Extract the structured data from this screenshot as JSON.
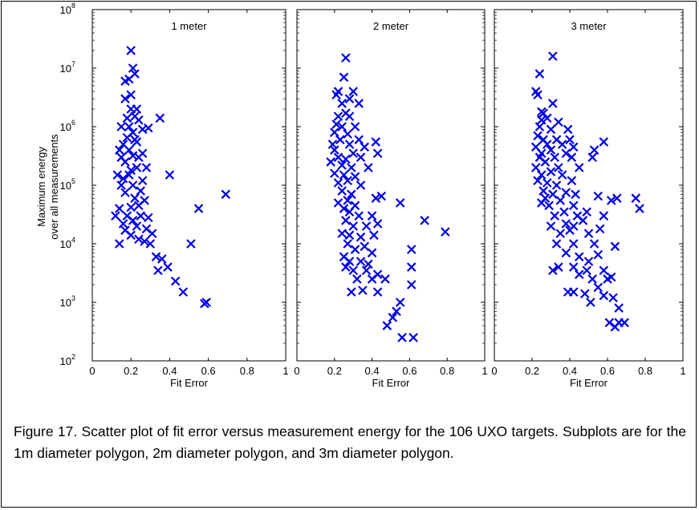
{
  "figure": {
    "caption": "Figure 17.  Scatter plot of fit error versus measurement energy for the 106 UXO targets.  Subplots are for the 1m diameter polygon, 2m diameter polygon, and 3m diameter polygon.",
    "marker_color": "#0000E6"
  },
  "chart_data": [
    {
      "type": "scatter",
      "title": "1 meter",
      "xlabel": "Fit Error",
      "ylabel": "Maximum energy over all measurements",
      "ylabel_lines": [
        "Maximum energy",
        "over all measurements"
      ],
      "xlim": [
        0,
        1
      ],
      "ylim": [
        100,
        100000000
      ],
      "yscale": "log",
      "xticks": [
        "0",
        "0.2",
        "0.4",
        "0.6",
        "0.8",
        "1"
      ],
      "yticks": [
        {
          "base": "10",
          "exp": "2"
        },
        {
          "base": "10",
          "exp": "3"
        },
        {
          "base": "10",
          "exp": "4"
        },
        {
          "base": "10",
          "exp": "5"
        },
        {
          "base": "10",
          "exp": "6"
        },
        {
          "base": "10",
          "exp": "7"
        },
        {
          "base": "10",
          "exp": "8"
        }
      ],
      "marker": "x",
      "points": [
        [
          0.2,
          20000000
        ],
        [
          0.21,
          10000000
        ],
        [
          0.22,
          8000000
        ],
        [
          0.17,
          6000000
        ],
        [
          0.19,
          6500000
        ],
        [
          0.2,
          3500000
        ],
        [
          0.17,
          3000000
        ],
        [
          0.2,
          2000000
        ],
        [
          0.23,
          2000000
        ],
        [
          0.18,
          1400000
        ],
        [
          0.22,
          1500000
        ],
        [
          0.24,
          1300000
        ],
        [
          0.35,
          1400000
        ],
        [
          0.15,
          1000000
        ],
        [
          0.19,
          1000000
        ],
        [
          0.21,
          800000
        ],
        [
          0.26,
          900000
        ],
        [
          0.29,
          950000
        ],
        [
          0.18,
          650000
        ],
        [
          0.22,
          600000
        ],
        [
          0.16,
          500000
        ],
        [
          0.23,
          550000
        ],
        [
          0.14,
          400000
        ],
        [
          0.19,
          400000
        ],
        [
          0.26,
          350000
        ],
        [
          0.15,
          300000
        ],
        [
          0.21,
          320000
        ],
        [
          0.24,
          300000
        ],
        [
          0.17,
          250000
        ],
        [
          0.23,
          200000
        ],
        [
          0.2,
          180000
        ],
        [
          0.28,
          200000
        ],
        [
          0.13,
          150000
        ],
        [
          0.16,
          130000
        ],
        [
          0.19,
          150000
        ],
        [
          0.26,
          120000
        ],
        [
          0.4,
          150000
        ],
        [
          0.15,
          100000
        ],
        [
          0.21,
          100000
        ],
        [
          0.25,
          80000
        ],
        [
          0.17,
          75000
        ],
        [
          0.22,
          60000
        ],
        [
          0.27,
          55000
        ],
        [
          0.24,
          45000
        ],
        [
          0.14,
          40000
        ],
        [
          0.2,
          42000
        ],
        [
          0.12,
          30000
        ],
        [
          0.18,
          30000
        ],
        [
          0.25,
          30000
        ],
        [
          0.29,
          28000
        ],
        [
          0.16,
          22000
        ],
        [
          0.21,
          25000
        ],
        [
          0.23,
          20000
        ],
        [
          0.28,
          18000
        ],
        [
          0.31,
          15000
        ],
        [
          0.17,
          17000
        ],
        [
          0.2,
          14000
        ],
        [
          0.24,
          12000
        ],
        [
          0.27,
          11000
        ],
        [
          0.14,
          10000
        ],
        [
          0.3,
          10000
        ],
        [
          0.33,
          6000
        ],
        [
          0.36,
          5500
        ],
        [
          0.34,
          3500
        ],
        [
          0.39,
          4000
        ],
        [
          0.43,
          2300
        ],
        [
          0.47,
          1500
        ],
        [
          0.55,
          40000
        ],
        [
          0.51,
          10000
        ],
        [
          0.59,
          1000
        ],
        [
          0.58,
          950
        ],
        [
          0.69,
          70000
        ]
      ]
    },
    {
      "type": "scatter",
      "title": "2 meter",
      "xlabel": "Fit Error",
      "xlim": [
        0,
        1
      ],
      "ylim": [
        100,
        100000000
      ],
      "yscale": "log",
      "xticks": [
        "0",
        "0.2",
        "0.4",
        "0.6",
        "0.8",
        "1"
      ],
      "marker": "x",
      "points": [
        [
          0.26,
          15000000
        ],
        [
          0.25,
          7000000
        ],
        [
          0.22,
          4000000
        ],
        [
          0.21,
          3500000
        ],
        [
          0.28,
          3000000
        ],
        [
          0.3,
          4000000
        ],
        [
          0.24,
          2500000
        ],
        [
          0.26,
          1700000
        ],
        [
          0.33,
          2500000
        ],
        [
          0.22,
          1500000
        ],
        [
          0.28,
          1500000
        ],
        [
          0.21,
          1100000
        ],
        [
          0.24,
          1000000
        ],
        [
          0.31,
          1000000
        ],
        [
          0.2,
          800000
        ],
        [
          0.27,
          750000
        ],
        [
          0.33,
          600000
        ],
        [
          0.42,
          550000
        ],
        [
          0.19,
          500000
        ],
        [
          0.23,
          600000
        ],
        [
          0.28,
          500000
        ],
        [
          0.36,
          450000
        ],
        [
          0.43,
          350000
        ],
        [
          0.2,
          400000
        ],
        [
          0.3,
          350000
        ],
        [
          0.22,
          300000
        ],
        [
          0.26,
          280000
        ],
        [
          0.34,
          300000
        ],
        [
          0.18,
          250000
        ],
        [
          0.24,
          220000
        ],
        [
          0.29,
          200000
        ],
        [
          0.38,
          200000
        ],
        [
          0.2,
          160000
        ],
        [
          0.25,
          150000
        ],
        [
          0.31,
          140000
        ],
        [
          0.27,
          120000
        ],
        [
          0.22,
          110000
        ],
        [
          0.34,
          100000
        ],
        [
          0.24,
          80000
        ],
        [
          0.29,
          70000
        ],
        [
          0.42,
          60000
        ],
        [
          0.45,
          65000
        ],
        [
          0.27,
          55000
        ],
        [
          0.22,
          50000
        ],
        [
          0.31,
          45000
        ],
        [
          0.25,
          40000
        ],
        [
          0.28,
          35000
        ],
        [
          0.33,
          30000
        ],
        [
          0.4,
          30000
        ],
        [
          0.26,
          25000
        ],
        [
          0.3,
          20000
        ],
        [
          0.37,
          20000
        ],
        [
          0.43,
          22000
        ],
        [
          0.24,
          15000
        ],
        [
          0.28,
          14000
        ],
        [
          0.34,
          13000
        ],
        [
          0.41,
          14000
        ],
        [
          0.27,
          10000
        ],
        [
          0.36,
          9000
        ],
        [
          0.31,
          8000
        ],
        [
          0.4,
          7000
        ],
        [
          0.25,
          6000
        ],
        [
          0.28,
          5000
        ],
        [
          0.34,
          5000
        ],
        [
          0.38,
          4500
        ],
        [
          0.26,
          4000
        ],
        [
          0.3,
          3500
        ],
        [
          0.37,
          3500
        ],
        [
          0.43,
          3000
        ],
        [
          0.32,
          2500
        ],
        [
          0.4,
          2500
        ],
        [
          0.47,
          2500
        ],
        [
          0.29,
          1500
        ],
        [
          0.35,
          1600
        ],
        [
          0.43,
          1500
        ],
        [
          0.55,
          1000
        ],
        [
          0.53,
          700
        ],
        [
          0.51,
          550
        ],
        [
          0.48,
          400
        ],
        [
          0.56,
          250
        ],
        [
          0.62,
          250
        ],
        [
          0.55,
          50000
        ],
        [
          0.68,
          25000
        ],
        [
          0.79,
          16000
        ],
        [
          0.61,
          8000
        ],
        [
          0.61,
          4000
        ],
        [
          0.61,
          2000
        ]
      ]
    },
    {
      "type": "scatter",
      "title": "3 meter",
      "xlabel": "Fit Error",
      "xlim": [
        0,
        1
      ],
      "ylim": [
        100,
        100000000
      ],
      "yscale": "log",
      "xticks": [
        "0",
        "0.2",
        "0.4",
        "0.6",
        "0.8",
        "1"
      ],
      "marker": "x",
      "points": [
        [
          0.31,
          16000000
        ],
        [
          0.24,
          8000000
        ],
        [
          0.22,
          4000000
        ],
        [
          0.23,
          3500000
        ],
        [
          0.31,
          2500000
        ],
        [
          0.25,
          1800000
        ],
        [
          0.26,
          1700000
        ],
        [
          0.25,
          1300000
        ],
        [
          0.28,
          1400000
        ],
        [
          0.34,
          1200000
        ],
        [
          0.24,
          1000000
        ],
        [
          0.3,
          900000
        ],
        [
          0.39,
          900000
        ],
        [
          0.23,
          700000
        ],
        [
          0.26,
          600000
        ],
        [
          0.33,
          600000
        ],
        [
          0.4,
          600000
        ],
        [
          0.22,
          450000
        ],
        [
          0.28,
          500000
        ],
        [
          0.36,
          500000
        ],
        [
          0.42,
          450000
        ],
        [
          0.25,
          350000
        ],
        [
          0.3,
          400000
        ],
        [
          0.38,
          350000
        ],
        [
          0.24,
          300000
        ],
        [
          0.32,
          300000
        ],
        [
          0.41,
          300000
        ],
        [
          0.53,
          400000
        ],
        [
          0.58,
          550000
        ],
        [
          0.22,
          200000
        ],
        [
          0.27,
          250000
        ],
        [
          0.34,
          200000
        ],
        [
          0.45,
          200000
        ],
        [
          0.52,
          300000
        ],
        [
          0.25,
          150000
        ],
        [
          0.3,
          170000
        ],
        [
          0.36,
          150000
        ],
        [
          0.41,
          120000
        ],
        [
          0.23,
          120000
        ],
        [
          0.28,
          110000
        ],
        [
          0.33,
          100000
        ],
        [
          0.26,
          80000
        ],
        [
          0.31,
          70000
        ],
        [
          0.38,
          75000
        ],
        [
          0.43,
          70000
        ],
        [
          0.27,
          60000
        ],
        [
          0.35,
          55000
        ],
        [
          0.25,
          50000
        ],
        [
          0.29,
          45000
        ],
        [
          0.42,
          45000
        ],
        [
          0.55,
          65000
        ],
        [
          0.62,
          55000
        ],
        [
          0.65,
          60000
        ],
        [
          0.32,
          30000
        ],
        [
          0.37,
          35000
        ],
        [
          0.44,
          30000
        ],
        [
          0.49,
          35000
        ],
        [
          0.58,
          30000
        ],
        [
          0.3,
          20000
        ],
        [
          0.38,
          22000
        ],
        [
          0.42,
          20000
        ],
        [
          0.47,
          25000
        ],
        [
          0.35,
          15000
        ],
        [
          0.4,
          17000
        ],
        [
          0.5,
          15000
        ],
        [
          0.56,
          18000
        ],
        [
          0.33,
          10000
        ],
        [
          0.42,
          10000
        ],
        [
          0.53,
          10000
        ],
        [
          0.64,
          9000
        ],
        [
          0.38,
          7000
        ],
        [
          0.45,
          6000
        ],
        [
          0.5,
          5000
        ],
        [
          0.55,
          6500
        ],
        [
          0.34,
          4000
        ],
        [
          0.42,
          4000
        ],
        [
          0.49,
          3500
        ],
        [
          0.58,
          3500
        ],
        [
          0.31,
          3500
        ],
        [
          0.45,
          3000
        ],
        [
          0.52,
          2500
        ],
        [
          0.6,
          2500
        ],
        [
          0.62,
          2700
        ],
        [
          0.39,
          1500
        ],
        [
          0.42,
          1500
        ],
        [
          0.48,
          1400
        ],
        [
          0.55,
          1800
        ],
        [
          0.58,
          1300
        ],
        [
          0.51,
          1000
        ],
        [
          0.63,
          1200
        ],
        [
          0.66,
          800
        ],
        [
          0.61,
          450
        ],
        [
          0.64,
          380
        ],
        [
          0.66,
          450
        ],
        [
          0.69,
          450
        ],
        [
          0.75,
          60000
        ],
        [
          0.77,
          40000
        ]
      ]
    }
  ]
}
